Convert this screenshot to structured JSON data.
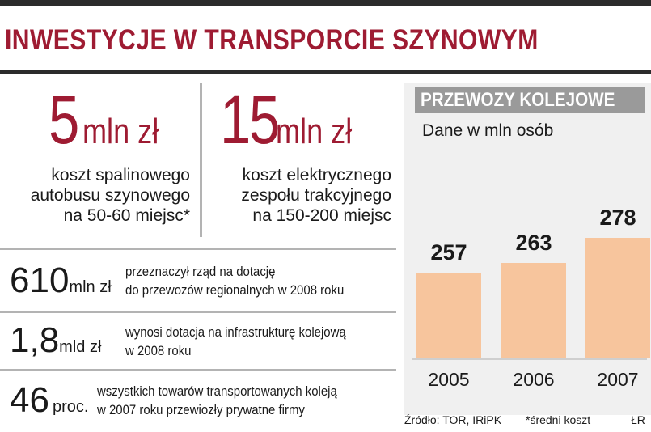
{
  "title": "INWESTYCJE W TRANSPORCIE SZYNOWYM",
  "highlights": [
    {
      "number": "5",
      "unit": "mln zł",
      "description": [
        "koszt spalinowego",
        "autobusu szynowego",
        "na 50-60 miejsc*"
      ]
    },
    {
      "number": "15",
      "unit": "mln zł",
      "description": [
        "koszt elektrycznego",
        "zespołu trakcyjnego",
        "na 150-200 miejsc"
      ]
    }
  ],
  "stats": [
    {
      "number": "610",
      "unit": "mln zł",
      "text": [
        "przeznaczył rząd na dotację",
        "do przewozów regionalnych w 2008 roku"
      ]
    },
    {
      "number": "1,8",
      "unit": "mld zł",
      "text": [
        "wynosi dotacja na infrastrukturę kolejową",
        "w 2008 roku"
      ]
    },
    {
      "number": "46",
      "unit": "proc.",
      "text": [
        "wszystkich towarów transportowanych koleją",
        "w 2007 roku przewiozły prywatne firmy"
      ]
    }
  ],
  "chart_data": {
    "type": "bar",
    "title": "PRZEWOZY KOLEJOWE",
    "subtitle": "Dane w mln osób",
    "categories": [
      "2005",
      "2006",
      "2007"
    ],
    "values": [
      257,
      263,
      278
    ],
    "data_labels": [
      "257",
      "263",
      "278"
    ],
    "bar_color": "#f7c59d",
    "panel_color": "#f0f0f0",
    "header_color": "#9a9a9a"
  },
  "footer": {
    "source": "Źródło: TOR, IRiPK",
    "note": "*średni koszt",
    "author": "ŁR"
  },
  "colors": {
    "accent": "#9e1b32",
    "rule": "#2b2b2b",
    "divider": "#b3b3b3"
  }
}
